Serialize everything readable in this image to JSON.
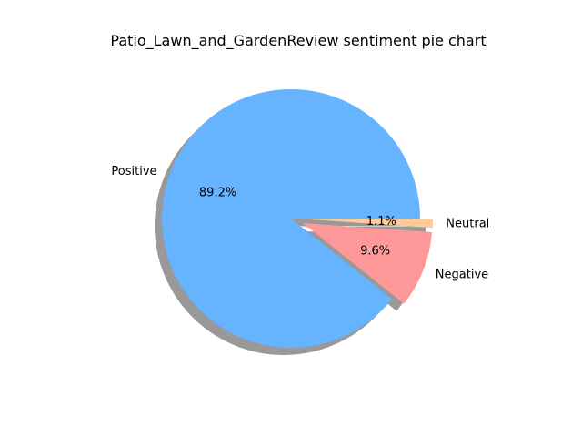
{
  "chart_data": {
    "type": "pie",
    "title": "Patio_Lawn_and_GardenReview sentiment pie chart",
    "categories": [
      "Positive",
      "Negative",
      "Neutral"
    ],
    "values": [
      89.2,
      9.6,
      1.1
    ],
    "percent_labels": [
      "89.2%",
      "9.6%",
      "1.1%"
    ],
    "colors": [
      "#66b3ff",
      "#ff9999",
      "#ffcc99"
    ],
    "exploded": [
      false,
      true,
      true
    ],
    "shadow": true,
    "start_angle_deg": 0,
    "direction": "counterclockwise"
  }
}
